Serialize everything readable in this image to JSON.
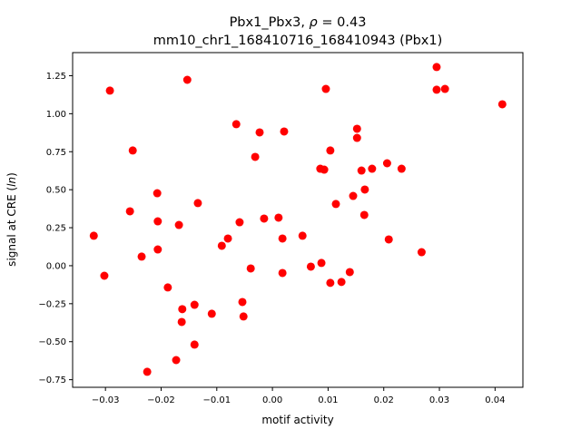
{
  "chart_data": {
    "type": "scatter",
    "title_line1_prefix": "Pbx1_Pbx3, ",
    "title_rho_symbol": "ρ",
    "title_line1_suffix": " = 0.43",
    "title_line2": "mm10_chr1_168410716_168410943 (Pbx1)",
    "xlabel": "motif activity",
    "ylabel_prefix": "signal at CRE (",
    "ylabel_italic": "ln",
    "ylabel_suffix": ")",
    "xlim": [
      -0.0359,
      0.045
    ],
    "ylim": [
      -0.8,
      1.402
    ],
    "xticks": [
      -0.03,
      -0.02,
      -0.01,
      0.0,
      0.01,
      0.02,
      0.03,
      0.04
    ],
    "xtick_labels": [
      "−0.03",
      "−0.02",
      "−0.01",
      "0.00",
      "0.01",
      "0.02",
      "0.03",
      "0.04"
    ],
    "yticks": [
      -0.75,
      -0.5,
      -0.25,
      0.0,
      0.25,
      0.5,
      0.75,
      1.0,
      1.25
    ],
    "ytick_labels": [
      "−0.75",
      "−0.50",
      "−0.25",
      "0.00",
      "0.25",
      "0.50",
      "0.75",
      "1.00",
      "1.25"
    ],
    "grid": false,
    "marker_color": "#ff0000",
    "x": [
      -0.0321,
      -0.0302,
      -0.0292,
      -0.0251,
      -0.0256,
      -0.0235,
      -0.0207,
      -0.0206,
      -0.0206,
      -0.0188,
      -0.0168,
      -0.0162,
      -0.0163,
      -0.0173,
      -0.0225,
      -0.014,
      -0.014,
      -0.0134,
      -0.0153,
      -0.0109,
      -0.0091,
      -0.008,
      -0.0065,
      -0.0059,
      -0.0054,
      -0.0052,
      -0.0039,
      -0.0031,
      -0.0023,
      -0.0015,
      0.0011,
      0.0018,
      0.0018,
      0.0021,
      0.0054,
      0.0069,
      0.0088,
      0.0086,
      0.0093,
      0.0096,
      0.0104,
      0.0104,
      0.0114,
      0.0124,
      0.0139,
      0.0145,
      0.0152,
      0.0152,
      0.016,
      0.0166,
      0.0165,
      0.0179,
      0.0206,
      0.0209,
      0.0232,
      0.0268,
      0.0295,
      0.0295,
      0.031,
      0.0413
    ],
    "y": [
      0.197,
      -0.066,
      1.152,
      0.758,
      0.358,
      0.06,
      0.477,
      0.292,
      0.107,
      -0.143,
      0.268,
      -0.286,
      -0.37,
      -0.621,
      -0.698,
      -0.257,
      -0.519,
      0.412,
      1.223,
      -0.316,
      0.131,
      0.179,
      0.931,
      0.286,
      -0.239,
      -0.334,
      -0.018,
      0.716,
      0.877,
      0.31,
      0.316,
      0.179,
      -0.048,
      0.883,
      0.197,
      -0.006,
      0.018,
      0.638,
      0.632,
      1.163,
      -0.113,
      0.758,
      0.406,
      -0.107,
      -0.042,
      0.459,
      0.841,
      0.901,
      0.626,
      0.501,
      0.334,
      0.638,
      0.674,
      0.173,
      0.638,
      0.089,
      1.307,
      1.158,
      1.163,
      1.062
    ]
  }
}
